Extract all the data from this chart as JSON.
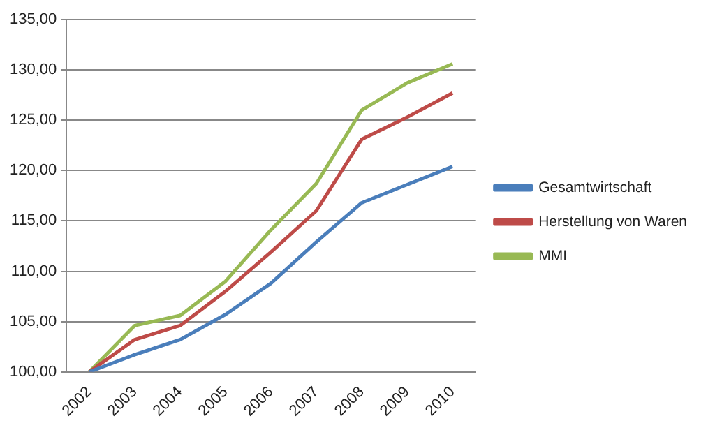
{
  "chart_data": {
    "type": "line",
    "categories": [
      "2002",
      "2003",
      "2004",
      "2005",
      "2006",
      "2007",
      "2008",
      "2009",
      "2010"
    ],
    "series": [
      {
        "name": "Gesamtwirtschaft",
        "color": "#4a7ebb",
        "values": [
          100,
          101.7,
          103.2,
          105.7,
          108.8,
          112.9,
          116.8,
          118.6,
          120.4
        ]
      },
      {
        "name": "Herstellung von Waren",
        "color": "#be4b48",
        "values": [
          100,
          103.2,
          104.6,
          108.0,
          111.9,
          116.0,
          123.1,
          125.3,
          127.7
        ]
      },
      {
        "name": "MMI",
        "color": "#98b954",
        "values": [
          100,
          104.6,
          105.6,
          109.0,
          114.1,
          118.7,
          126.0,
          128.7,
          130.6
        ]
      }
    ],
    "ylim": [
      100,
      135
    ],
    "yticks": [
      {
        "value": 100,
        "label": "100,00"
      },
      {
        "value": 105,
        "label": "105,00"
      },
      {
        "value": 110,
        "label": "110,00"
      },
      {
        "value": 115,
        "label": "115,00"
      },
      {
        "value": 120,
        "label": "120,00"
      },
      {
        "value": 125,
        "label": "125,00"
      },
      {
        "value": 130,
        "label": "130,00"
      },
      {
        "value": 135,
        "label": "135,00"
      }
    ],
    "grid": "y",
    "legend": "right",
    "marker": "none",
    "line_style": "solid"
  }
}
